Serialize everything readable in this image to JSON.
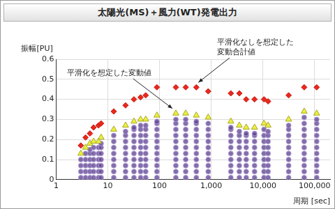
{
  "chart_data": {
    "type": "scatter",
    "title": "太陽光(MS)＋風力(WT)発電出力",
    "xlabel": "周期\n[sec]",
    "ylabel": "振幅[PU]",
    "log": "x",
    "grid": true,
    "xlim": [
      1,
      200000
    ],
    "xticks": [
      1,
      10,
      100,
      {
        "value": 1000,
        "label": "1,000"
      },
      {
        "value": 10000,
        "label": "10,000"
      },
      {
        "value": 100000,
        "label": "100,000"
      }
    ],
    "ylim": [
      0,
      0.6
    ],
    "yticks": [
      0,
      0.1,
      0.2,
      0.3,
      0.4,
      0.5,
      0.6
    ],
    "annotations": [
      {
        "text": "平滑化を想定した変動値"
      },
      {
        "text": "平滑化なしを想定した\n変動合計値"
      }
    ],
    "series": [
      {
        "color": "#eef03c",
        "marker": "triangle",
        "x": [
          3,
          3.7,
          4.5,
          5.3,
          6.6,
          7.4,
          13,
          22,
          32,
          43,
          54,
          89,
          207,
          321,
          515,
          875,
          2400,
          3500,
          4760,
          6900,
          10500,
          12600,
          31500,
          63000,
          110000
        ],
        "values": [
          0.13,
          0.16,
          0.18,
          0.19,
          0.19,
          0.21,
          0.25,
          0.27,
          0.29,
          0.3,
          0.3,
          0.32,
          0.33,
          0.33,
          0.32,
          0.31,
          0.29,
          0.27,
          0.26,
          0.26,
          0.28,
          0.27,
          0.3,
          0.34,
          0.33
        ]
      },
      {
        "color": "#e8281e",
        "marker": "diamond",
        "x": [
          3,
          3.7,
          4.5,
          5.3,
          6.6,
          7.4,
          13,
          22,
          32,
          43,
          54,
          89,
          207,
          321,
          515,
          875,
          2400,
          3500,
          4760,
          6900,
          10500,
          12600,
          31500,
          63000,
          110000
        ],
        "values": [
          0.17,
          0.21,
          0.23,
          0.26,
          0.27,
          0.28,
          0.34,
          0.37,
          0.4,
          0.41,
          0.42,
          0.46,
          0.46,
          0.46,
          0.46,
          0.44,
          0.43,
          0.43,
          0.4,
          0.4,
          0.4,
          0.39,
          0.42,
          0.46,
          0.46
        ]
      },
      {
        "color": "#5a3c8c",
        "marker": "circle",
        "x": [
          3,
          3,
          3,
          3,
          3.7,
          3.7,
          3.7,
          3.7,
          3.7,
          4.5,
          4.5,
          4.5,
          4.5,
          4.5,
          4.5,
          5.3,
          5.3,
          5.3,
          5.3,
          5.3,
          5.3,
          6.6,
          6.6,
          6.6,
          6.6,
          6.6,
          6.6,
          7.4,
          7.4,
          7.4,
          7.4,
          7.4,
          7.4,
          7.4,
          13,
          13,
          13,
          13,
          13,
          13,
          13,
          13,
          22,
          22,
          22,
          22,
          22,
          22,
          22,
          22,
          22,
          32,
          32,
          32,
          32,
          32,
          32,
          32,
          32,
          32,
          32,
          43,
          43,
          43,
          43,
          43,
          43,
          43,
          43,
          43,
          43,
          54,
          54,
          54,
          54,
          54,
          54,
          54,
          54,
          54,
          54,
          89,
          89,
          89,
          89,
          89,
          89,
          89,
          89,
          89,
          89,
          89,
          207,
          207,
          207,
          207,
          207,
          207,
          207,
          207,
          207,
          207,
          207,
          321,
          321,
          321,
          321,
          321,
          321,
          321,
          321,
          321,
          321,
          321,
          515,
          515,
          515,
          515,
          515,
          515,
          515,
          515,
          515,
          515,
          515,
          875,
          875,
          875,
          875,
          875,
          875,
          875,
          875,
          875,
          875,
          2400,
          2400,
          2400,
          2400,
          2400,
          2400,
          2400,
          2400,
          2400,
          2400,
          3500,
          3500,
          3500,
          3500,
          3500,
          3500,
          3500,
          3500,
          3500,
          4760,
          4760,
          4760,
          4760,
          4760,
          4760,
          4760,
          4760,
          4760,
          6900,
          6900,
          6900,
          6900,
          6900,
          6900,
          6900,
          6900,
          6900,
          10500,
          10500,
          10500,
          10500,
          10500,
          10500,
          10500,
          10500,
          10500,
          12600,
          12600,
          12600,
          12600,
          12600,
          12600,
          12600,
          12600,
          12600,
          31500,
          31500,
          31500,
          31500,
          31500,
          31500,
          31500,
          31500,
          31500,
          31500,
          63000,
          63000,
          63000,
          63000,
          63000,
          63000,
          63000,
          63000,
          63000,
          63000,
          63000,
          110000,
          110000,
          110000,
          110000,
          110000,
          110000,
          110000,
          110000,
          110000,
          110000,
          110000
        ],
        "values": [
          0.01,
          0.04,
          0.07,
          0.1,
          0.01,
          0.04,
          0.07,
          0.1,
          0.13,
          0.01,
          0.04,
          0.07,
          0.1,
          0.13,
          0.15,
          0.01,
          0.04,
          0.07,
          0.1,
          0.13,
          0.16,
          0.01,
          0.04,
          0.07,
          0.1,
          0.13,
          0.16,
          0.01,
          0.04,
          0.07,
          0.1,
          0.13,
          0.16,
          0.18,
          0.01,
          0.04,
          0.07,
          0.1,
          0.13,
          0.16,
          0.19,
          0.22,
          0.01,
          0.04,
          0.07,
          0.1,
          0.13,
          0.16,
          0.19,
          0.22,
          0.24,
          0.01,
          0.04,
          0.07,
          0.1,
          0.13,
          0.16,
          0.19,
          0.22,
          0.25,
          0.26,
          0.01,
          0.04,
          0.07,
          0.1,
          0.13,
          0.16,
          0.19,
          0.22,
          0.25,
          0.27,
          0.01,
          0.04,
          0.07,
          0.1,
          0.13,
          0.16,
          0.19,
          0.22,
          0.25,
          0.27,
          0.01,
          0.04,
          0.07,
          0.1,
          0.13,
          0.16,
          0.19,
          0.22,
          0.25,
          0.28,
          0.29,
          0.01,
          0.04,
          0.07,
          0.1,
          0.13,
          0.16,
          0.19,
          0.22,
          0.25,
          0.28,
          0.3,
          0.01,
          0.04,
          0.07,
          0.1,
          0.13,
          0.16,
          0.19,
          0.22,
          0.25,
          0.28,
          0.3,
          0.01,
          0.04,
          0.07,
          0.1,
          0.13,
          0.16,
          0.19,
          0.22,
          0.25,
          0.28,
          0.29,
          0.01,
          0.04,
          0.07,
          0.1,
          0.13,
          0.16,
          0.19,
          0.22,
          0.25,
          0.28,
          0.01,
          0.04,
          0.07,
          0.1,
          0.13,
          0.16,
          0.19,
          0.22,
          0.25,
          0.26,
          0.01,
          0.04,
          0.07,
          0.1,
          0.13,
          0.16,
          0.19,
          0.22,
          0.24,
          0.01,
          0.04,
          0.07,
          0.1,
          0.13,
          0.16,
          0.19,
          0.22,
          0.23,
          0.01,
          0.04,
          0.07,
          0.1,
          0.13,
          0.16,
          0.19,
          0.22,
          0.23,
          0.01,
          0.04,
          0.07,
          0.1,
          0.13,
          0.16,
          0.19,
          0.22,
          0.25,
          0.01,
          0.04,
          0.07,
          0.1,
          0.13,
          0.16,
          0.19,
          0.22,
          0.24,
          0.01,
          0.04,
          0.07,
          0.1,
          0.13,
          0.16,
          0.19,
          0.22,
          0.25,
          0.27,
          0.01,
          0.04,
          0.07,
          0.1,
          0.13,
          0.16,
          0.19,
          0.22,
          0.25,
          0.28,
          0.31,
          0.01,
          0.04,
          0.07,
          0.1,
          0.13,
          0.16,
          0.19,
          0.22,
          0.25,
          0.28,
          0.3
        ]
      }
    ]
  }
}
